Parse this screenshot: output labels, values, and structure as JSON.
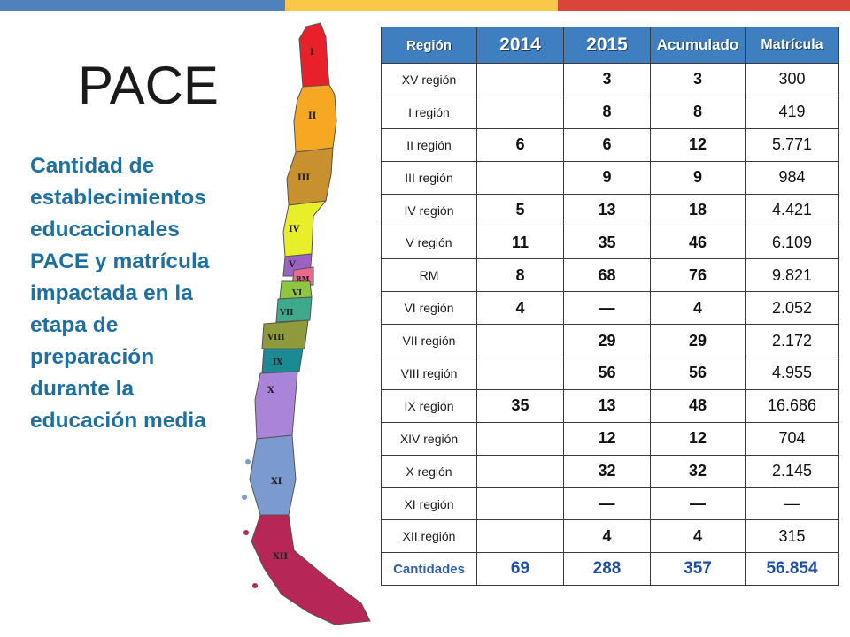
{
  "title": "PACE",
  "subtitle": "Cantidad de establecimientos educacionales PACE y matrícula impactada en la etapa de preparación durante la educación media",
  "colors": {
    "header_bg": "#3f7fc0",
    "subtitle": "#1f6f9f",
    "totals": "#1e4fa6",
    "bar_blue": "#4f81bd",
    "bar_yellow": "#f9c848",
    "bar_red": "#d9453a"
  },
  "map": {
    "regions": [
      {
        "label": "I",
        "color": "#e8202a"
      },
      {
        "label": "II",
        "color": "#f7a823"
      },
      {
        "label": "III",
        "color": "#c8902f"
      },
      {
        "label": "IV",
        "color": "#e8ee2a"
      },
      {
        "label": "V",
        "color": "#9b62c4"
      },
      {
        "label": "RM",
        "color": "#e86b8f"
      },
      {
        "label": "VI",
        "color": "#8ec641"
      },
      {
        "label": "VII",
        "color": "#3fa98c"
      },
      {
        "label": "VIII",
        "color": "#8f9a3a"
      },
      {
        "label": "IX",
        "color": "#1b8a93"
      },
      {
        "label": "X",
        "color": "#a984d9"
      },
      {
        "label": "XI",
        "color": "#7b9ad0"
      },
      {
        "label": "XII",
        "color": "#b62757"
      }
    ]
  },
  "table": {
    "headers": [
      "Región",
      "2014",
      "2015",
      "Acumulado",
      "Matrícula"
    ],
    "rows": [
      {
        "region": "XV región",
        "y2014": "",
        "y2015": "3",
        "acumulado": "3",
        "matricula": "300"
      },
      {
        "region": "I región",
        "y2014": "",
        "y2015": "8",
        "acumulado": "8",
        "matricula": "419"
      },
      {
        "region": "II región",
        "y2014": "6",
        "y2015": "6",
        "acumulado": "12",
        "matricula": "5.771"
      },
      {
        "region": "III región",
        "y2014": "",
        "y2015": "9",
        "acumulado": "9",
        "matricula": "984"
      },
      {
        "region": "IV región",
        "y2014": "5",
        "y2015": "13",
        "acumulado": "18",
        "matricula": "4.421"
      },
      {
        "region": "V región",
        "y2014": "11",
        "y2015": "35",
        "acumulado": "46",
        "matricula": "6.109"
      },
      {
        "region": "RM",
        "y2014": "8",
        "y2015": "68",
        "acumulado": "76",
        "matricula": "9.821"
      },
      {
        "region": "VI región",
        "y2014": "4",
        "y2015": "—",
        "acumulado": "4",
        "matricula": "2.052"
      },
      {
        "region": "VII región",
        "y2014": "",
        "y2015": "29",
        "acumulado": "29",
        "matricula": "2.172"
      },
      {
        "region": "VIII región",
        "y2014": "",
        "y2015": "56",
        "acumulado": "56",
        "matricula": "4.955"
      },
      {
        "region": "IX región",
        "y2014": "35",
        "y2015": "13",
        "acumulado": "48",
        "matricula": "16.686"
      },
      {
        "region": "XIV región",
        "y2014": "",
        "y2015": "12",
        "acumulado": "12",
        "matricula": "704"
      },
      {
        "region": "X región",
        "y2014": "",
        "y2015": "32",
        "acumulado": "32",
        "matricula": "2.145"
      },
      {
        "region": "XI región",
        "y2014": "",
        "y2015": "—",
        "acumulado": "—",
        "matricula": "—"
      },
      {
        "region": "XII región",
        "y2014": "",
        "y2015": "4",
        "acumulado": "4",
        "matricula": "315"
      }
    ],
    "totals": {
      "region": "Cantidades",
      "y2014": "69",
      "y2015": "288",
      "acumulado": "357",
      "matricula": "56.854"
    }
  }
}
